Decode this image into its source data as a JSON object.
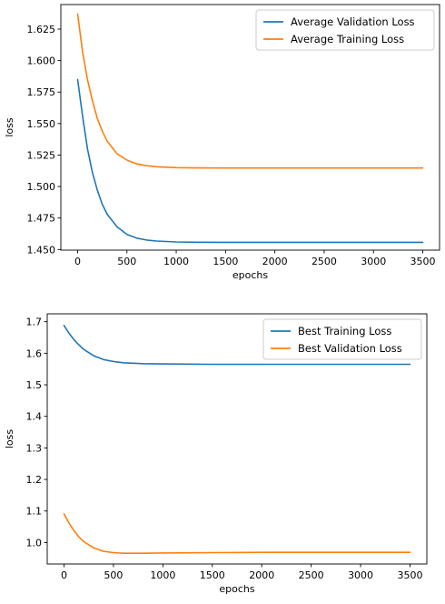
{
  "chart_data": [
    {
      "type": "line",
      "title": "",
      "xlabel": "epochs",
      "ylabel": "loss",
      "xlim": [
        -170,
        3670
      ],
      "ylim": [
        1.4495,
        1.6445
      ],
      "x_ticks": [
        0,
        500,
        1000,
        1500,
        2000,
        2500,
        3000,
        3500
      ],
      "y_ticks": [
        1.45,
        1.475,
        1.5,
        1.525,
        1.55,
        1.575,
        1.6,
        1.625
      ],
      "x_tick_labels": [
        "0",
        "500",
        "1000",
        "1500",
        "2000",
        "2500",
        "3000",
        "3500"
      ],
      "y_tick_labels": [
        "1.450",
        "1.475",
        "1.500",
        "1.525",
        "1.550",
        "1.575",
        "1.600",
        "1.625"
      ],
      "grid": false,
      "legend_position": "top-right",
      "series": [
        {
          "name": "Average Validation Loss",
          "color": "#1f77b4",
          "x": [
            0,
            50,
            100,
            150,
            200,
            250,
            300,
            400,
            500,
            600,
            700,
            800,
            1000,
            1200,
            1500,
            2000,
            2500,
            3000,
            3500
          ],
          "values": [
            1.585,
            1.556,
            1.53,
            1.511,
            1.497,
            1.486,
            1.478,
            1.468,
            1.462,
            1.459,
            1.4575,
            1.4567,
            1.456,
            1.4558,
            1.4557,
            1.4557,
            1.4557,
            1.4557,
            1.4557
          ]
        },
        {
          "name": "Average Training Loss",
          "color": "#ff7f0e",
          "x": [
            0,
            50,
            100,
            150,
            200,
            250,
            300,
            400,
            500,
            600,
            700,
            800,
            1000,
            1200,
            1500,
            2000,
            2500,
            3000,
            3500
          ],
          "values": [
            1.637,
            1.607,
            1.585,
            1.568,
            1.554,
            1.544,
            1.536,
            1.526,
            1.521,
            1.518,
            1.5165,
            1.5157,
            1.515,
            1.5148,
            1.5147,
            1.5147,
            1.5147,
            1.5147,
            1.5147
          ]
        }
      ]
    },
    {
      "type": "line",
      "title": "",
      "xlabel": "epochs",
      "ylabel": "loss",
      "xlim": [
        -170,
        3670
      ],
      "ylim": [
        0.932,
        1.725
      ],
      "x_ticks": [
        0,
        500,
        1000,
        1500,
        2000,
        2500,
        3000,
        3500
      ],
      "y_ticks": [
        1.0,
        1.1,
        1.2,
        1.3,
        1.4,
        1.5,
        1.6,
        1.7
      ],
      "x_tick_labels": [
        "0",
        "500",
        "1000",
        "1500",
        "2000",
        "2500",
        "3000",
        "3500"
      ],
      "y_tick_labels": [
        "1.0",
        "1.1",
        "1.2",
        "1.3",
        "1.4",
        "1.5",
        "1.6",
        "1.7"
      ],
      "grid": false,
      "legend_position": "top-right",
      "series": [
        {
          "name": "Best Training Loss",
          "color": "#1f77b4",
          "x": [
            0,
            50,
            100,
            150,
            200,
            300,
            400,
            500,
            600,
            800,
            1000,
            1500,
            2000,
            2500,
            3000,
            3500
          ],
          "values": [
            1.688,
            1.664,
            1.643,
            1.627,
            1.612,
            1.592,
            1.58,
            1.574,
            1.57,
            1.567,
            1.566,
            1.565,
            1.565,
            1.565,
            1.565,
            1.565
          ]
        },
        {
          "name": "Best Validation Loss",
          "color": "#ff7f0e",
          "x": [
            0,
            50,
            100,
            150,
            200,
            300,
            400,
            500,
            600,
            800,
            1000,
            1500,
            2000,
            2500,
            3000,
            3500
          ],
          "values": [
            1.091,
            1.062,
            1.038,
            1.018,
            1.003,
            0.983,
            0.972,
            0.968,
            0.966,
            0.966,
            0.967,
            0.968,
            0.969,
            0.969,
            0.969,
            0.969
          ]
        }
      ]
    }
  ]
}
